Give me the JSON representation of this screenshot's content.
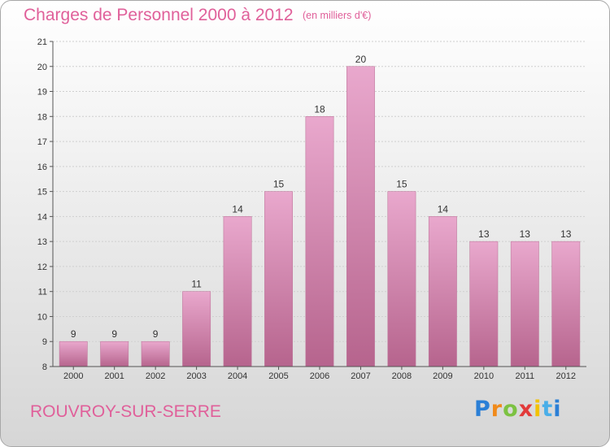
{
  "page": {
    "title": "Charges de Personnel 2000 à 2012",
    "subtitle": "(en milliers d'€)",
    "commune": "ROUVROY-SUR-SERRE",
    "logo_text": "Proxiti"
  },
  "colors": {
    "title": "#e0609a",
    "bar_light": "#e8a6cc",
    "bar_dark": "#b8648e",
    "axis": "#555555",
    "grid": "#cccccc"
  },
  "chart_data": {
    "type": "bar",
    "title": "Charges de Personnel 2000 à 2012",
    "subtitle": "(en milliers d'€)",
    "xlabel": "",
    "ylabel": "",
    "categories": [
      "2000",
      "2001",
      "2002",
      "2003",
      "2004",
      "2005",
      "2006",
      "2007",
      "2008",
      "2009",
      "2010",
      "2011",
      "2012"
    ],
    "values": [
      9,
      9,
      9,
      11,
      14,
      15,
      18,
      20,
      15,
      14,
      13,
      13,
      13
    ],
    "ylim": [
      8,
      21
    ],
    "yticks": [
      8,
      9,
      10,
      11,
      12,
      13,
      14,
      15,
      16,
      17,
      18,
      19,
      20,
      21
    ],
    "grid": true,
    "data_labels": true
  }
}
